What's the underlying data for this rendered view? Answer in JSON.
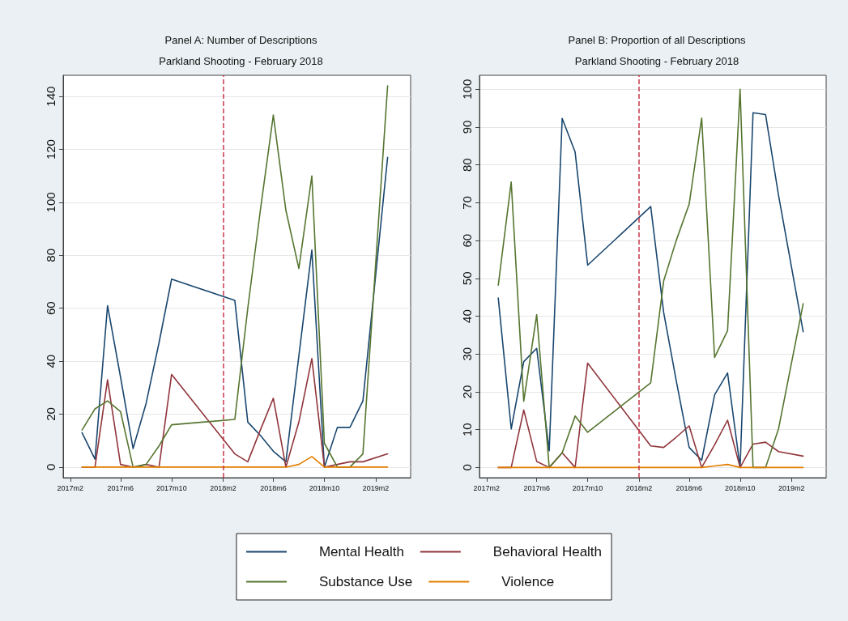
{
  "chart_data": [
    {
      "type": "line",
      "title": "Panel A: Number of Descriptions",
      "subtitle": "Parkland Shooting - February 2018",
      "x": [
        "2017-03",
        "2017-04",
        "2017-05",
        "2017-06",
        "2017-07",
        "2017-08",
        "2017-09",
        "2017-10",
        "2018-03",
        "2018-04",
        "2018-05",
        "2018-06",
        "2018-07",
        "2018-08",
        "2018-09",
        "2018-10",
        "2018-11",
        "2018-12",
        "2019-01",
        "2019-03"
      ],
      "series": [
        {
          "name": "Mental Health",
          "color": "#1a476f",
          "values": [
            13,
            3,
            61,
            34,
            7,
            24,
            47,
            71,
            63,
            17,
            12,
            6,
            2,
            42,
            82,
            0,
            15,
            15,
            25,
            117
          ]
        },
        {
          "name": "Behavioral Health",
          "color": "#90353b",
          "values": [
            0,
            0,
            33,
            1,
            0,
            1,
            0,
            35,
            5,
            2,
            14,
            26,
            0,
            17,
            41,
            0,
            1,
            2,
            2,
            5
          ]
        },
        {
          "name": "Substance Use",
          "color": "#55752f",
          "values": [
            14,
            22,
            25,
            21,
            0,
            1,
            8,
            16,
            18,
            60,
            97,
            133,
            97,
            75,
            110,
            9,
            0,
            0,
            5,
            144
          ]
        },
        {
          "name": "Violence",
          "color": "#e37e00",
          "values": [
            0,
            0,
            0,
            0,
            0,
            0,
            0,
            0,
            0,
            0,
            0,
            0,
            0,
            1,
            4,
            0,
            0,
            0,
            0,
            0
          ]
        }
      ],
      "xlim": [
        "2017-01-15",
        "2019-04-25"
      ],
      "xticks": [
        {
          "value": "2017-02",
          "label": "2017m2"
        },
        {
          "value": "2017-06",
          "label": "2017m6"
        },
        {
          "value": "2017-10",
          "label": "2017m10"
        },
        {
          "value": "2018-02",
          "label": "2018m2"
        },
        {
          "value": "2018-06",
          "label": "2018m6"
        },
        {
          "value": "2018-10",
          "label": "2018m10"
        },
        {
          "value": "2019-02",
          "label": "2019m2"
        }
      ],
      "ylim": [
        -4,
        148
      ],
      "yticks": [
        0,
        20,
        40,
        60,
        80,
        100,
        120,
        140
      ],
      "ref_lines": [
        {
          "axis": "x",
          "value": "2018-02",
          "color": "#c8384a",
          "line_style": "dashed"
        }
      ],
      "grid": "y",
      "legend": "bottom",
      "marker": "none",
      "line_style": "solid"
    },
    {
      "type": "line",
      "title": "Panel B: Proportion of all Descriptions",
      "subtitle": "Parkland Shooting - February 2018",
      "x": [
        "2017-03",
        "2017-04",
        "2017-05",
        "2017-06",
        "2017-07",
        "2017-08",
        "2017-09",
        "2017-10",
        "2018-03",
        "2018-04",
        "2018-05",
        "2018-06",
        "2018-07",
        "2018-08",
        "2018-09",
        "2018-10",
        "2018-11",
        "2018-12",
        "2019-01",
        "2019-03"
      ],
      "series": [
        {
          "color": "#1a476f",
          "values": [
            44.8,
            10.2,
            28,
            31.5,
            4.4,
            92.3,
            83.4,
            53.5,
            69,
            41,
            23,
            5.3,
            1.9,
            19.2,
            25,
            0,
            93.8,
            93.3,
            72,
            35.9
          ]
        },
        {
          "color": "#90353b",
          "values": [
            0,
            0,
            15.2,
            1.6,
            0,
            3.9,
            0,
            27.6,
            5.7,
            5.3,
            8,
            11,
            0,
            6,
            12.5,
            0,
            6.2,
            6.7,
            4.2,
            3
          ]
        },
        {
          "color": "#55752f",
          "values": [
            48.2,
            75.5,
            17.5,
            40.4,
            0,
            3.9,
            13.6,
            9.3,
            22.4,
            49.3,
            60,
            69.6,
            92.4,
            29.1,
            36.2,
            100,
            0,
            0,
            10.2,
            43.3
          ]
        },
        {
          "color": "#e37e00",
          "values": [
            0,
            0,
            0,
            0,
            0,
            0,
            0,
            0,
            0,
            0,
            0,
            0,
            0,
            0.4,
            0.8,
            0,
            0,
            0,
            0,
            0
          ]
        }
      ],
      "xlim": [
        "2017-01-15",
        "2019-04-25"
      ],
      "xticks": [
        {
          "value": "2017-02",
          "label": "2017m2"
        },
        {
          "value": "2017-06",
          "label": "2017m6"
        },
        {
          "value": "2017-10",
          "label": "2017m10"
        },
        {
          "value": "2018-02",
          "label": "2018m2"
        },
        {
          "value": "2018-06",
          "label": "2018m6"
        },
        {
          "value": "2018-10",
          "label": "2018m10"
        },
        {
          "value": "2019-02",
          "label": "2019m2"
        }
      ],
      "ylim": [
        -2.7,
        103.7
      ],
      "yticks": [
        0,
        10,
        20,
        30,
        40,
        50,
        60,
        70,
        80,
        90,
        100
      ],
      "ref_lines": [
        {
          "axis": "x",
          "value": "2018-02",
          "color": "#c8384a",
          "line_style": "dashed"
        }
      ],
      "grid": "y",
      "marker": "none",
      "line_style": "solid"
    }
  ]
}
